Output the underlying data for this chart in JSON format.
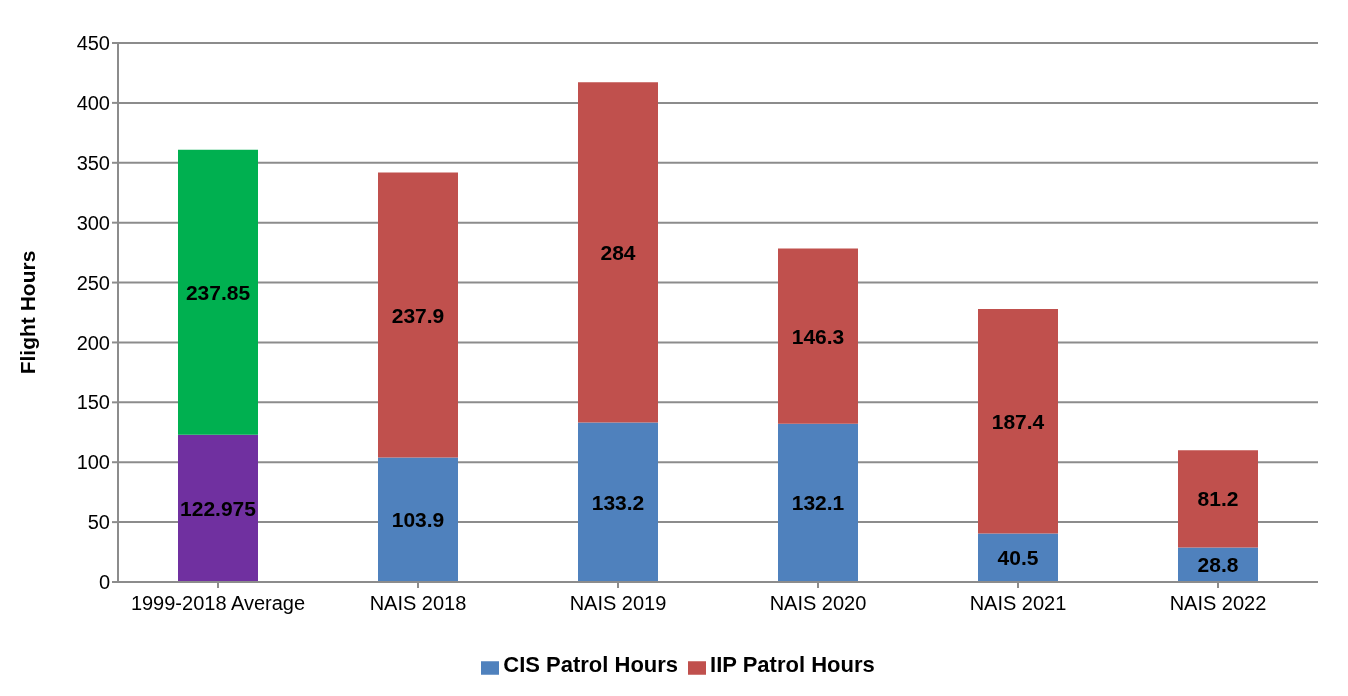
{
  "chart_data": {
    "type": "bar",
    "stacked": true,
    "ylabel": "Flight Hours",
    "categories": [
      "1999-2018 Average",
      "NAIS 2018",
      "NAIS 2019",
      "NAIS 2020",
      "NAIS 2021",
      "NAIS 2022"
    ],
    "series": [
      {
        "name": "CIS Patrol Hours",
        "color": "#4f81bd",
        "colors": [
          "#7030a0",
          "#4f81bd",
          "#4f81bd",
          "#4f81bd",
          "#4f81bd",
          "#4f81bd"
        ],
        "values": [
          122.975,
          103.9,
          133.2,
          132.1,
          40.5,
          28.8
        ]
      },
      {
        "name": "IIP Patrol Hours",
        "color": "#c0504d",
        "colors": [
          "#00b050",
          "#c0504d",
          "#c0504d",
          "#c0504d",
          "#c0504d",
          "#c0504d"
        ],
        "values": [
          237.85,
          237.9,
          284,
          146.3,
          187.4,
          81.2
        ]
      }
    ],
    "ylim": [
      0,
      450
    ],
    "yticks": [
      0,
      50,
      100,
      150,
      200,
      250,
      300,
      350,
      400,
      450
    ],
    "grid": "y",
    "legend": "bottom",
    "data_labels": true
  }
}
